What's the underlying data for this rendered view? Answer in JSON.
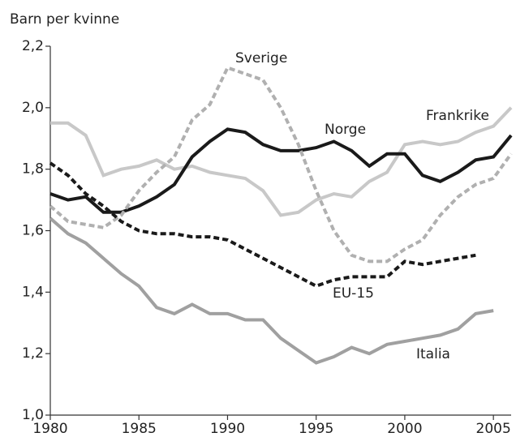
{
  "chart_data": {
    "type": "line",
    "y_label": "Barn per kvinne",
    "x": [
      1980,
      1981,
      1982,
      1983,
      1984,
      1985,
      1986,
      1987,
      1988,
      1989,
      1990,
      1991,
      1992,
      1993,
      1994,
      1995,
      1996,
      1997,
      1998,
      1999,
      2000,
      2001,
      2002,
      2003,
      2004,
      2005,
      2006
    ],
    "xlim": [
      1980,
      2006
    ],
    "xticks": [
      1980,
      1985,
      1990,
      1995,
      2000,
      2005
    ],
    "ylim": [
      1.0,
      2.2
    ],
    "yticks": [
      {
        "value": 1.0,
        "label": "1,0"
      },
      {
        "value": 1.2,
        "label": "1,2"
      },
      {
        "value": 1.4,
        "label": "1,4"
      },
      {
        "value": 1.6,
        "label": "1,6"
      },
      {
        "value": 1.8,
        "label": "1,8"
      },
      {
        "value": 2.0,
        "label": "2,0"
      },
      {
        "value": 2.2,
        "label": "2,2"
      }
    ],
    "grid": false,
    "series": [
      {
        "name": "Frankrike",
        "color": "#c8c8c8",
        "dash": false,
        "values": [
          1.95,
          1.95,
          1.91,
          1.78,
          1.8,
          1.81,
          1.83,
          1.8,
          1.81,
          1.79,
          1.78,
          1.77,
          1.73,
          1.65,
          1.66,
          1.7,
          1.72,
          1.71,
          1.76,
          1.79,
          1.88,
          1.89,
          1.88,
          1.89,
          1.92,
          1.94,
          2.0
        ]
      },
      {
        "name": "Norge",
        "color": "#1a1a1a",
        "dash": false,
        "values": [
          1.72,
          1.7,
          1.71,
          1.66,
          1.66,
          1.68,
          1.71,
          1.75,
          1.84,
          1.89,
          1.93,
          1.92,
          1.88,
          1.86,
          1.86,
          1.87,
          1.89,
          1.86,
          1.81,
          1.85,
          1.85,
          1.78,
          1.76,
          1.79,
          1.83,
          1.84,
          1.91
        ]
      },
      {
        "name": "Sverige",
        "color": "#b0b0b0",
        "dash": true,
        "values": [
          1.68,
          1.63,
          1.62,
          1.61,
          1.65,
          1.73,
          1.79,
          1.84,
          1.96,
          2.01,
          2.13,
          2.11,
          2.09,
          2.0,
          1.88,
          1.73,
          1.6,
          1.52,
          1.5,
          1.5,
          1.54,
          1.57,
          1.65,
          1.71,
          1.75,
          1.77,
          1.85
        ]
      },
      {
        "name": "EU-15",
        "color": "#1a1a1a",
        "dash": true,
        "values": [
          1.82,
          1.78,
          1.72,
          1.68,
          1.63,
          1.6,
          1.59,
          1.59,
          1.58,
          1.58,
          1.57,
          1.54,
          1.51,
          1.48,
          1.45,
          1.42,
          1.44,
          1.45,
          1.45,
          1.45,
          1.5,
          1.49,
          1.5,
          1.51,
          1.52,
          null,
          null
        ]
      },
      {
        "name": "Italia",
        "color": "#a0a0a0",
        "dash": false,
        "values": [
          1.64,
          1.59,
          1.56,
          1.51,
          1.46,
          1.42,
          1.35,
          1.33,
          1.36,
          1.33,
          1.33,
          1.31,
          1.31,
          1.25,
          1.21,
          1.17,
          1.19,
          1.22,
          1.2,
          1.23,
          1.24,
          1.25,
          1.26,
          1.28,
          1.33,
          1.34,
          null
        ]
      }
    ]
  }
}
